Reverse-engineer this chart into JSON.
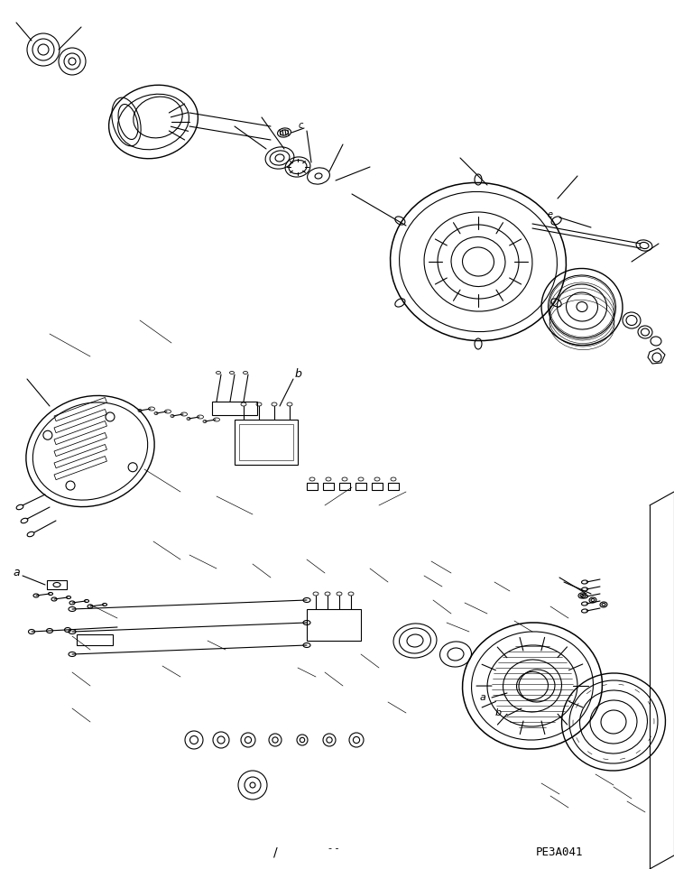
{
  "bg_color": "#ffffff",
  "line_color": "#000000",
  "line_width": 0.8,
  "fig_width": 7.47,
  "fig_height": 9.63,
  "dpi": 100,
  "watermark": "PE3A041",
  "label_a": "a",
  "label_b": "b",
  "label_c": "c",
  "label_e": "e"
}
